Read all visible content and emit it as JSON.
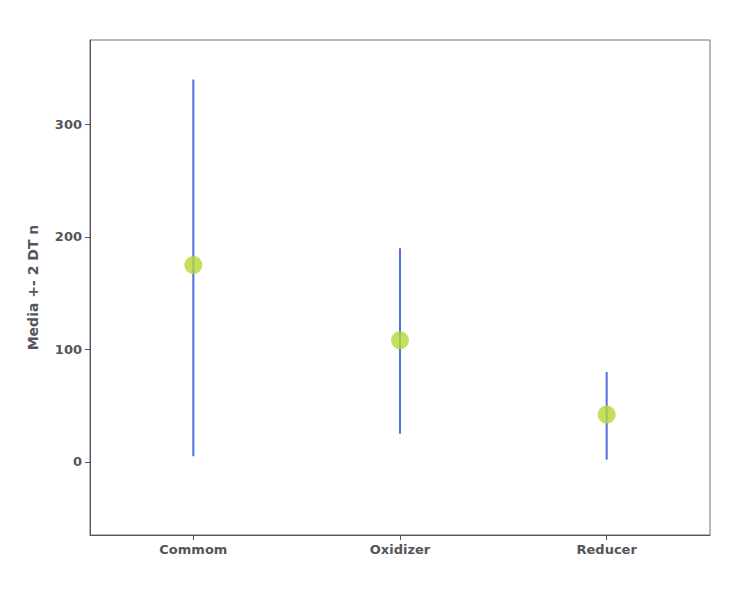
{
  "chart_data": {
    "type": "scatter",
    "ylabel": "Media +- 2 DT n",
    "categories": [
      "Commom",
      "Oxidizer",
      "Reducer"
    ],
    "values": [
      175,
      108,
      42
    ],
    "upper": [
      340,
      190,
      80
    ],
    "lower": [
      5,
      25,
      2
    ],
    "ylim": [
      -65,
      375
    ],
    "yticks": [
      0,
      100,
      200,
      300
    ],
    "grid": false
  }
}
